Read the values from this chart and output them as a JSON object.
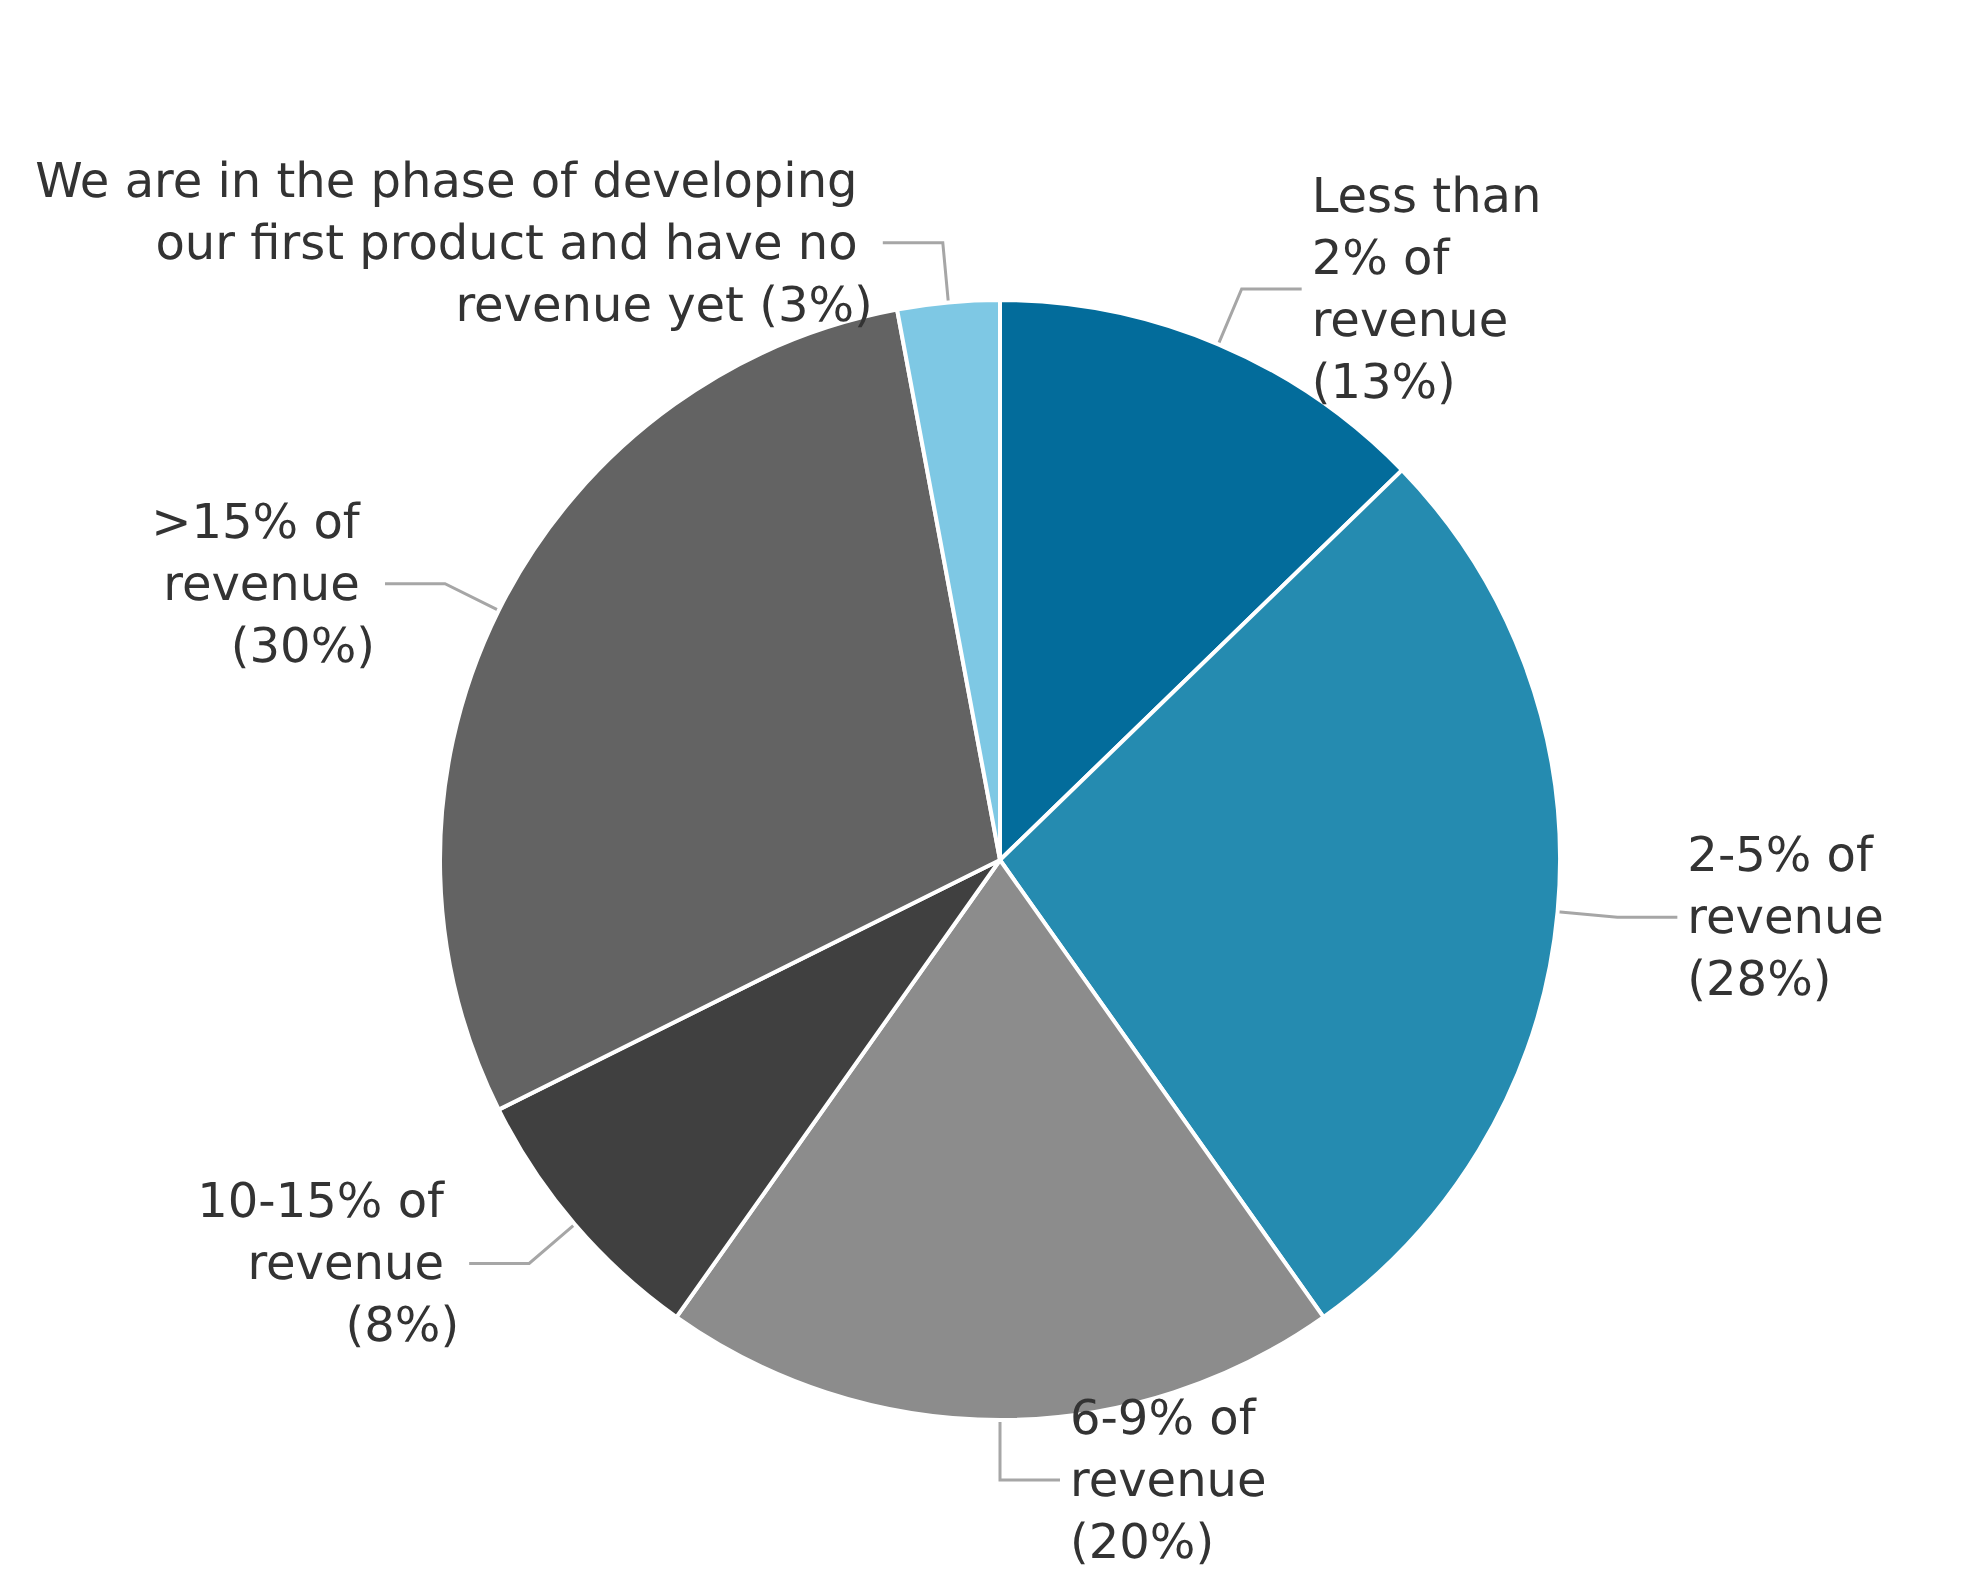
{
  "chart_data": {
    "type": "pie",
    "categories": [
      "Less than 2% of revenue",
      "2-5% of revenue",
      "6-9% of revenue",
      "10-15% of revenue",
      ">15% of revenue",
      "We are in the phase of developing our first product and have no revenue yet"
    ],
    "values": [
      13,
      28,
      20,
      8,
      30,
      3
    ],
    "value_labels": [
      "(13%)",
      "(28%)",
      "(20%)",
      "(8%)",
      "(30%)",
      "(3%)"
    ],
    "colors": [
      "#036c9b",
      "#258bb0",
      "#8c8c8c",
      "#404040",
      "#636363",
      "#7ec8e4"
    ]
  }
}
